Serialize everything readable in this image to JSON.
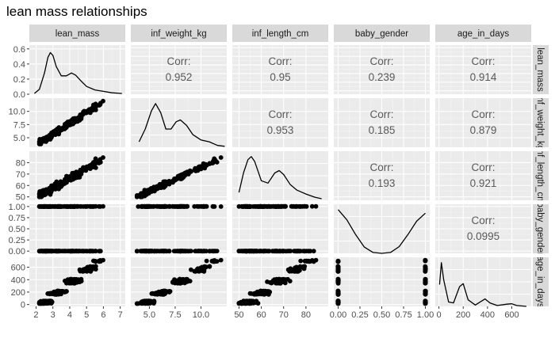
{
  "chart_data": {
    "type": "scatter",
    "title": "lean mass relationships",
    "variables": [
      "lean_mass",
      "inf_weight_kg",
      "inf_length_cm",
      "baby_gender",
      "age_in_days"
    ],
    "axes": {
      "lean_mass": {
        "range": [
          1.6,
          7.3
        ],
        "ticks": [
          2,
          3,
          4,
          5,
          6,
          7
        ],
        "tick_labels": [
          "2",
          "3",
          "4",
          "5",
          "6",
          "7"
        ]
      },
      "inf_weight_kg": {
        "range": [
          3.2,
          12.5
        ],
        "ticks": [
          5.0,
          7.5,
          10.0
        ],
        "tick_labels": [
          "5.0",
          "7.5",
          "10.0"
        ]
      },
      "inf_length_cm": {
        "range": [
          47,
          90
        ],
        "ticks": [
          50,
          60,
          70,
          80
        ],
        "tick_labels": [
          "50",
          "60",
          "70",
          "80"
        ]
      },
      "baby_gender": {
        "range": [
          -0.05,
          1.05
        ],
        "ticks": [
          0,
          0.25,
          0.5,
          0.75,
          1.0
        ],
        "tick_labels": [
          "0.00",
          "0.25",
          "0.50",
          "0.75",
          "1.00"
        ]
      },
      "age_in_days": {
        "range": [
          -30,
          760
        ],
        "ticks": [
          0,
          200,
          400,
          600
        ],
        "tick_labels": [
          "0",
          "200",
          "400",
          "600"
        ]
      }
    },
    "density": {
      "lean_mass": {
        "y_range": [
          0,
          0.65
        ],
        "y_ticks": [
          0,
          0.2,
          0.4,
          0.6
        ],
        "y_tick_labels": [
          "0.0",
          "0.2",
          "0.4",
          "0.6"
        ],
        "points": [
          [
            1.9,
            0.01
          ],
          [
            2.2,
            0.07
          ],
          [
            2.5,
            0.3
          ],
          [
            2.7,
            0.52
          ],
          [
            2.85,
            0.59
          ],
          [
            3.0,
            0.55
          ],
          [
            3.2,
            0.39
          ],
          [
            3.5,
            0.26
          ],
          [
            3.8,
            0.26
          ],
          [
            4.1,
            0.3
          ],
          [
            4.35,
            0.27
          ],
          [
            4.7,
            0.18
          ],
          [
            5.0,
            0.11
          ],
          [
            5.5,
            0.06
          ],
          [
            6.0,
            0.04
          ],
          [
            6.5,
            0.02
          ],
          [
            7.1,
            0.01
          ]
        ]
      },
      "inf_weight_kg": {
        "points": [
          [
            4.0,
            0.03
          ],
          [
            4.6,
            0.1
          ],
          [
            5.2,
            0.2
          ],
          [
            5.6,
            0.24
          ],
          [
            6.1,
            0.19
          ],
          [
            6.6,
            0.1
          ],
          [
            7.1,
            0.1
          ],
          [
            7.6,
            0.14
          ],
          [
            8.0,
            0.15
          ],
          [
            8.6,
            0.12
          ],
          [
            9.2,
            0.07
          ],
          [
            10.0,
            0.04
          ],
          [
            10.8,
            0.03
          ],
          [
            11.6,
            0.01
          ],
          [
            12.3,
            0.005
          ]
        ]
      },
      "inf_length_cm": {
        "points": [
          [
            50,
            0.01
          ],
          [
            52,
            0.035
          ],
          [
            54,
            0.052
          ],
          [
            55.5,
            0.056
          ],
          [
            57,
            0.05
          ],
          [
            60,
            0.025
          ],
          [
            63,
            0.022
          ],
          [
            66,
            0.035
          ],
          [
            68,
            0.038
          ],
          [
            70,
            0.033
          ],
          [
            73,
            0.02
          ],
          [
            76,
            0.013
          ],
          [
            80,
            0.008
          ],
          [
            84,
            0.004
          ],
          [
            87,
            0.002
          ]
        ]
      },
      "baby_gender": {
        "points": [
          [
            0,
            0.98
          ],
          [
            0.1,
            0.75
          ],
          [
            0.2,
            0.42
          ],
          [
            0.3,
            0.14
          ],
          [
            0.4,
            0.02
          ],
          [
            0.5,
            0
          ],
          [
            0.6,
            0.02
          ],
          [
            0.7,
            0.15
          ],
          [
            0.8,
            0.42
          ],
          [
            0.9,
            0.72
          ],
          [
            1.0,
            0.9
          ]
        ]
      },
      "age_in_days": {
        "points": [
          [
            5,
            0.5
          ],
          [
            20,
            1.0
          ],
          [
            40,
            0.6
          ],
          [
            80,
            0.1
          ],
          [
            120,
            0.08
          ],
          [
            170,
            0.45
          ],
          [
            200,
            0.52
          ],
          [
            240,
            0.15
          ],
          [
            300,
            0.03
          ],
          [
            350,
            0.12
          ],
          [
            380,
            0.17
          ],
          [
            420,
            0.08
          ],
          [
            480,
            0.02
          ],
          [
            560,
            0.05
          ],
          [
            600,
            0.06
          ],
          [
            640,
            0.02
          ],
          [
            720,
            0.0
          ]
        ]
      }
    },
    "correlations": [
      {
        "row": 0,
        "col": 1,
        "label": "Corr:",
        "value": "0.952"
      },
      {
        "row": 0,
        "col": 2,
        "label": "Corr:",
        "value": "0.95"
      },
      {
        "row": 0,
        "col": 3,
        "label": "Corr:",
        "value": "0.239"
      },
      {
        "row": 0,
        "col": 4,
        "label": "Corr:",
        "value": "0.914"
      },
      {
        "row": 1,
        "col": 2,
        "label": "Corr:",
        "value": "0.953"
      },
      {
        "row": 1,
        "col": 3,
        "label": "Corr:",
        "value": "0.185"
      },
      {
        "row": 1,
        "col": 4,
        "label": "Corr:",
        "value": "0.879"
      },
      {
        "row": 2,
        "col": 3,
        "label": "Corr:",
        "value": "0.193"
      },
      {
        "row": 2,
        "col": 4,
        "label": "Corr:",
        "value": "0.921"
      },
      {
        "row": 3,
        "col": 4,
        "label": "Corr:",
        "value": "0.0995"
      }
    ],
    "colors": {
      "panel_bg": "#ebebeb",
      "grid_major": "#ffffff",
      "grid_minor": "#f5f5f5",
      "strip_bg": "#d9d9d9",
      "points": "#000000"
    },
    "grid": true
  }
}
